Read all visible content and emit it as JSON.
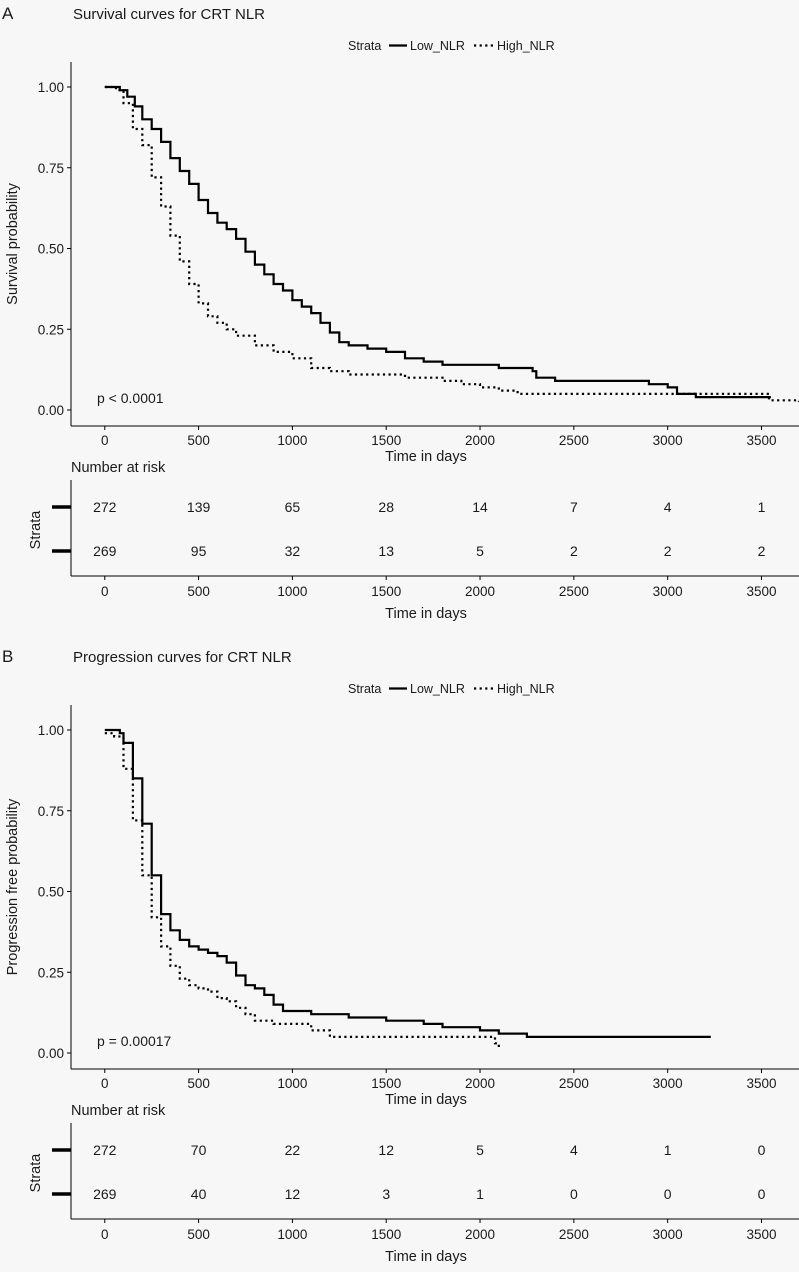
{
  "chart_data": [
    {
      "type": "line",
      "panel_letter": "A",
      "title": "Survival curves for CRT NLR",
      "legend_title": "Strata",
      "legend": [
        "Low_NLR",
        "High_NLR"
      ],
      "xlabel": "Time in days",
      "ylabel": "Survival probability",
      "xlim": [
        -180,
        3700
      ],
      "ylim": [
        0,
        1
      ],
      "x_ticks": [
        0,
        500,
        1000,
        1500,
        2000,
        2500,
        3000,
        3500
      ],
      "y_ticks": [
        "0.00",
        "0.25",
        "0.50",
        "0.75",
        "1.00"
      ],
      "annotation": "p < 0.0001",
      "series": [
        {
          "name": "Low_NLR",
          "style": "solid",
          "x": [
            0,
            60,
            80,
            120,
            160,
            200,
            250,
            300,
            350,
            400,
            450,
            500,
            550,
            600,
            650,
            700,
            750,
            800,
            850,
            900,
            950,
            1000,
            1050,
            1100,
            1150,
            1200,
            1250,
            1300,
            1400,
            1500,
            1600,
            1700,
            1800,
            1900,
            2000,
            2100,
            2200,
            2280,
            2300,
            2400,
            2500,
            2900,
            3000,
            3050,
            3150,
            3550
          ],
          "y": [
            1.0,
            1.0,
            0.99,
            0.97,
            0.94,
            0.9,
            0.87,
            0.83,
            0.78,
            0.74,
            0.7,
            0.65,
            0.61,
            0.58,
            0.56,
            0.53,
            0.49,
            0.45,
            0.42,
            0.39,
            0.37,
            0.34,
            0.32,
            0.3,
            0.27,
            0.24,
            0.21,
            0.2,
            0.19,
            0.18,
            0.16,
            0.15,
            0.14,
            0.14,
            0.14,
            0.13,
            0.13,
            0.12,
            0.1,
            0.09,
            0.09,
            0.08,
            0.07,
            0.05,
            0.04,
            0.04
          ]
        },
        {
          "name": "High_NLR",
          "style": "dotted",
          "x": [
            0,
            60,
            100,
            150,
            200,
            250,
            300,
            350,
            400,
            450,
            500,
            550,
            600,
            650,
            700,
            800,
            900,
            1000,
            1100,
            1200,
            1300,
            1400,
            1500,
            1600,
            1700,
            1800,
            1900,
            2000,
            2100,
            2200,
            2500,
            3000,
            3500,
            3540,
            3700
          ],
          "y": [
            1.0,
            0.99,
            0.95,
            0.87,
            0.82,
            0.72,
            0.63,
            0.54,
            0.46,
            0.39,
            0.33,
            0.29,
            0.27,
            0.25,
            0.23,
            0.2,
            0.18,
            0.16,
            0.13,
            0.12,
            0.11,
            0.11,
            0.11,
            0.1,
            0.1,
            0.09,
            0.08,
            0.07,
            0.06,
            0.05,
            0.05,
            0.05,
            0.05,
            0.03,
            0.025
          ]
        }
      ],
      "risk_table": {
        "title": "Number at risk",
        "strata_label": "Strata",
        "xlabel": "Time in days",
        "times": [
          0,
          500,
          1000,
          1500,
          2000,
          2500,
          3000,
          3500
        ],
        "rows": [
          {
            "name": "Low_NLR",
            "values": [
              "272",
              "139",
              "65",
              "28",
              "14",
              "7",
              "4",
              "1"
            ]
          },
          {
            "name": "High_NLR",
            "values": [
              "269",
              "95",
              "32",
              "13",
              "5",
              "2",
              "2",
              "2"
            ]
          }
        ]
      }
    },
    {
      "type": "line",
      "panel_letter": "B",
      "title": "Progression curves for CRT NLR",
      "legend_title": "Strata",
      "legend": [
        "Low_NLR",
        "High_NLR"
      ],
      "xlabel": "Time in days",
      "ylabel": "Progression free probability",
      "xlim": [
        -180,
        3700
      ],
      "ylim": [
        0,
        1
      ],
      "x_ticks": [
        0,
        500,
        1000,
        1500,
        2000,
        2500,
        3000,
        3500
      ],
      "y_ticks": [
        "0.00",
        "0.25",
        "0.50",
        "0.75",
        "1.00"
      ],
      "annotation": "p = 0.00017",
      "series": [
        {
          "name": "Low_NLR",
          "style": "solid",
          "x": [
            0,
            50,
            80,
            100,
            150,
            200,
            250,
            300,
            350,
            400,
            450,
            500,
            550,
            600,
            650,
            700,
            750,
            800,
            850,
            900,
            950,
            1000,
            1100,
            1200,
            1300,
            1400,
            1500,
            1600,
            1700,
            1800,
            1900,
            2000,
            2100,
            2200,
            2250,
            3230
          ],
          "y": [
            1.0,
            1.0,
            0.99,
            0.96,
            0.85,
            0.71,
            0.55,
            0.43,
            0.38,
            0.35,
            0.33,
            0.32,
            0.31,
            0.3,
            0.28,
            0.24,
            0.21,
            0.2,
            0.18,
            0.15,
            0.13,
            0.13,
            0.12,
            0.12,
            0.11,
            0.11,
            0.1,
            0.1,
            0.09,
            0.08,
            0.08,
            0.07,
            0.06,
            0.06,
            0.05,
            0.05
          ]
        },
        {
          "name": "High_NLR",
          "style": "dotted",
          "x": [
            0,
            50,
            100,
            150,
            200,
            250,
            300,
            350,
            400,
            450,
            500,
            550,
            600,
            650,
            700,
            750,
            800,
            900,
            1000,
            1100,
            1200,
            1300,
            1500,
            1800,
            2000,
            2050,
            2080,
            2100
          ],
          "y": [
            0.99,
            0.98,
            0.88,
            0.72,
            0.55,
            0.42,
            0.33,
            0.27,
            0.23,
            0.21,
            0.2,
            0.19,
            0.17,
            0.16,
            0.14,
            0.12,
            0.1,
            0.09,
            0.09,
            0.07,
            0.05,
            0.05,
            0.05,
            0.05,
            0.05,
            0.05,
            0.03,
            0.01
          ]
        }
      ],
      "risk_table": {
        "title": "Number at risk",
        "strata_label": "Strata",
        "xlabel": "Time in days",
        "times": [
          0,
          500,
          1000,
          1500,
          2000,
          2500,
          3000,
          3500
        ],
        "rows": [
          {
            "name": "Low_NLR",
            "values": [
              "272",
              "70",
              "22",
              "12",
              "5",
              "4",
              "1",
              "0"
            ]
          },
          {
            "name": "High_NLR",
            "values": [
              "269",
              "40",
              "12",
              "3",
              "1",
              "0",
              "0",
              "0"
            ]
          }
        ]
      }
    }
  ]
}
